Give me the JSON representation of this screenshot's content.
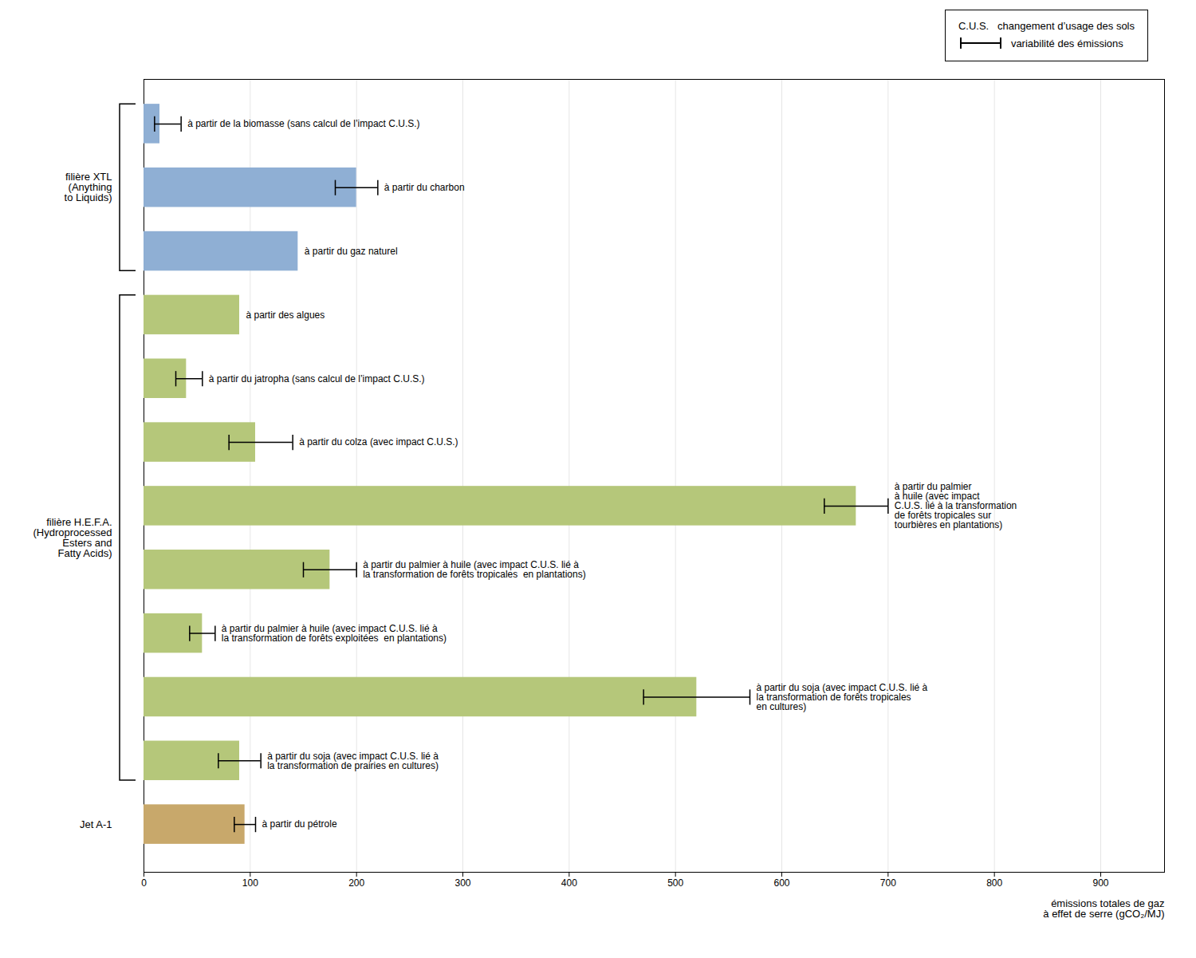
{
  "chart_data": {
    "type": "bar",
    "orientation": "horizontal",
    "categories": [
      "à partir de la biomasse (sans calcul de l’impact C.U.S.)",
      "à partir du charbon",
      "à partir du gaz naturel",
      "à partir des algues",
      "à partir du jatropha (sans calcul de l’impact C.U.S.)",
      "à partir du colza (avec impact C.U.S.)",
      "à partir du palmier\nà huile (avec impact\nC.U.S. lié à la transformation\nde forêts tropicales sur\ntourbières en plantations)",
      "à partir du palmier à huile (avec impact C.U.S. lié à\nla transformation de forêts tropicales  en plantations)",
      "à partir du palmier à huile (avec impact C.U.S. lié à\nla transformation de forêts exploitées  en plantations)",
      "à partir du soja (avec impact C.U.S. lié à\nla transformation de forêts tropicales\nen cultures)",
      "à partir du soja (avec impact C.U.S. lié à\nla transformation de prairies en cultures)",
      "à partir du pétrole"
    ],
    "values": [
      15,
      200,
      145,
      90,
      40,
      105,
      670,
      175,
      55,
      520,
      90,
      95
    ],
    "error_lo": [
      5,
      20,
      0,
      0,
      10,
      25,
      30,
      25,
      12,
      50,
      20,
      10
    ],
    "error_hi": [
      20,
      20,
      0,
      0,
      15,
      35,
      30,
      25,
      12,
      50,
      20,
      10
    ],
    "colors": [
      "#8fafd4",
      "#8fafd4",
      "#8fafd4",
      "#b5c77a",
      "#b5c77a",
      "#b5c77a",
      "#b5c77a",
      "#b5c77a",
      "#b5c77a",
      "#b5c77a",
      "#b5c77a",
      "#c8a86b"
    ],
    "groups": [
      "filière XTL\n(Anything\nto Liquids)",
      "filière XTL\n(Anything\nto Liquids)",
      "filière XTL\n(Anything\nto Liquids)",
      "filière H.E.F.A.\n(Hydroprocessed\nEsters and\nFatty Acids)",
      "filière H.E.F.A.\n(Hydroprocessed\nEsters and\nFatty Acids)",
      "filière H.E.F.A.\n(Hydroprocessed\nEsters and\nFatty Acids)",
      "filière H.E.F.A.\n(Hydroprocessed\nEsters and\nFatty Acids)",
      "filière H.E.F.A.\n(Hydroprocessed\nEsters and\nFatty Acids)",
      "filière H.E.F.A.\n(Hydroprocessed\nEsters and\nFatty Acids)",
      "filière H.E.F.A.\n(Hydroprocessed\nEsters and\nFatty Acids)",
      "filière H.E.F.A.\n(Hydroprocessed\nEsters and\nFatty Acids)",
      "Jet A-1"
    ],
    "xlabel": "émissions totales de gaz\nà effet de serre (gCO₂/MJ)",
    "xlim": [
      0,
      960
    ],
    "xticks": [
      0,
      100,
      200,
      300,
      400,
      500,
      600,
      700,
      800,
      900
    ],
    "grid": true,
    "tick_labels": "x",
    "annotations": [
      {
        "text": "C.U.S.   changement d’usage des sols"
      },
      {
        "text": "variabilité des émissions",
        "marker": "errorbar"
      }
    ]
  }
}
